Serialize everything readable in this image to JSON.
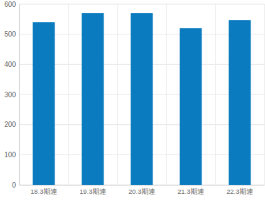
{
  "chart_data": {
    "type": "bar",
    "categories": [
      "18.3期連",
      "19.3期連",
      "20.3期連",
      "21.3期連",
      "22.3期連"
    ],
    "values": [
      540,
      570,
      570,
      520,
      547
    ],
    "color": "#0a7bbf",
    "ylim": [
      0,
      600
    ],
    "yticks": [
      0,
      100,
      200,
      300,
      400,
      500,
      600
    ],
    "grid": true
  }
}
